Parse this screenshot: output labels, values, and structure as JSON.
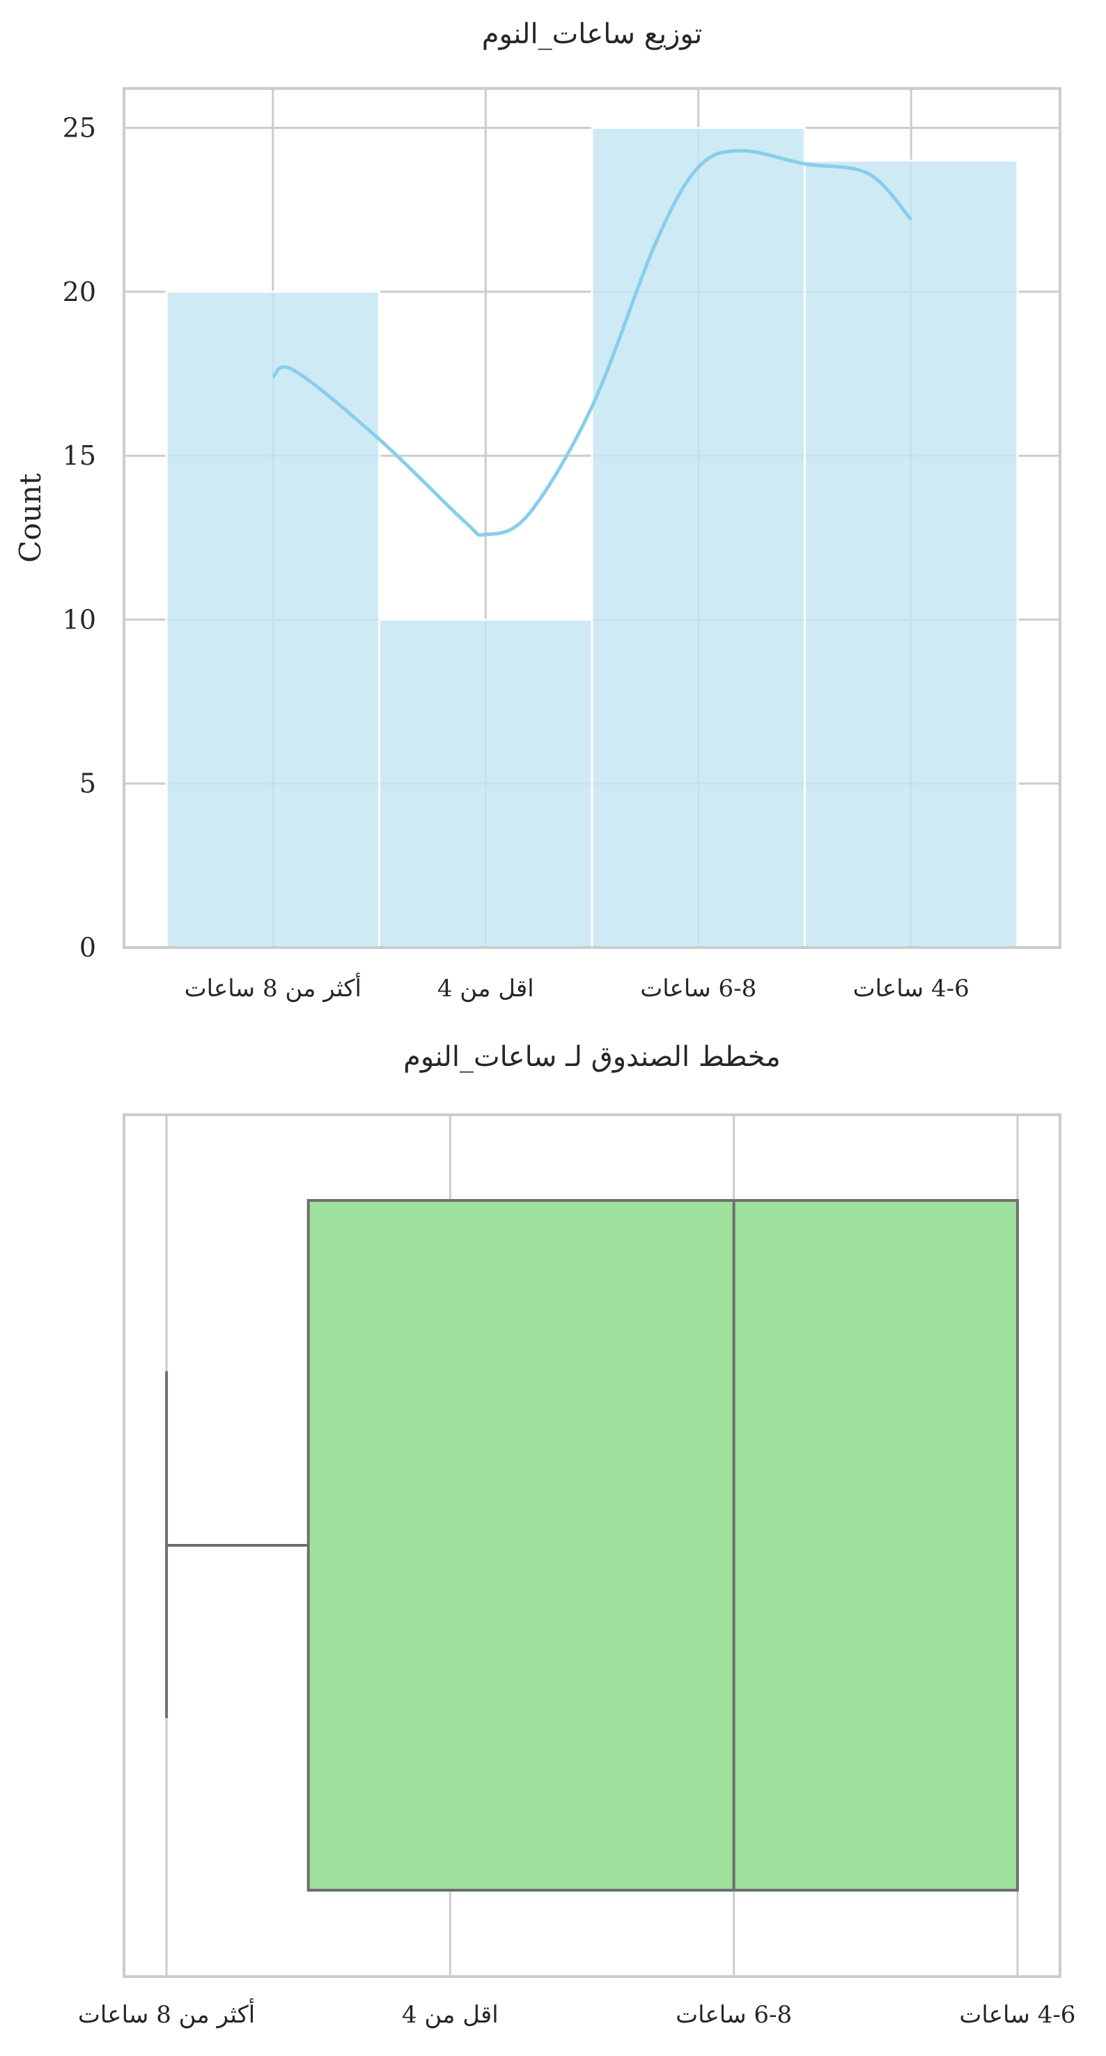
{
  "chart_data": [
    {
      "type": "bar",
      "title": "توزيع ساعات_النوم",
      "xlabel": "",
      "ylabel": "Count",
      "categories": [
        "أكثر من 8 ساعات",
        "اقل من 4",
        "6-8 ساعات",
        "4-6 ساعات"
      ],
      "values": [
        20,
        10,
        25,
        24
      ],
      "ylim": [
        0,
        26.2
      ],
      "yticks": [
        "0",
        "5",
        "10",
        "15",
        "20",
        "25"
      ],
      "kde_points": [
        [
          0,
          17.4
        ],
        [
          0.1,
          17.6
        ],
        [
          0.5,
          15.5
        ],
        [
          0.9,
          13.0
        ],
        [
          1.0,
          12.6
        ],
        [
          1.2,
          13.2
        ],
        [
          1.5,
          16.5
        ],
        [
          1.8,
          21.5
        ],
        [
          2.0,
          23.8
        ],
        [
          2.2,
          24.3
        ],
        [
          2.5,
          23.9
        ],
        [
          2.8,
          23.6
        ],
        [
          3.0,
          22.2
        ]
      ],
      "grid": true,
      "colors": {
        "bar": "#c3e5f3",
        "kde": "#87ceeb",
        "grid": "#cccccc",
        "frame": "#cccccc"
      }
    },
    {
      "type": "boxplot",
      "title": "مخطط الصندوق لـ ساعات_النوم",
      "categories": [
        "ﺕﺎﻋﺎﺳ 8 ﻦﻣ ﺮﺜﻛﺃ",
        "4 ﻦﻣ ﻞﻗﺍ",
        "ﺕﺎﻋﺎﺳ 6-8",
        "ﺕﺎﻋﺎﺳ 4-6"
      ],
      "whisker_low": 0,
      "q1": 0.5,
      "median": 2,
      "q3": 3,
      "whisker_high": 3,
      "grid": true,
      "colors": {
        "box": "#9de19d",
        "edge": "#6e6e6e",
        "grid": "#cccccc",
        "frame": "#cccccc"
      }
    }
  ]
}
